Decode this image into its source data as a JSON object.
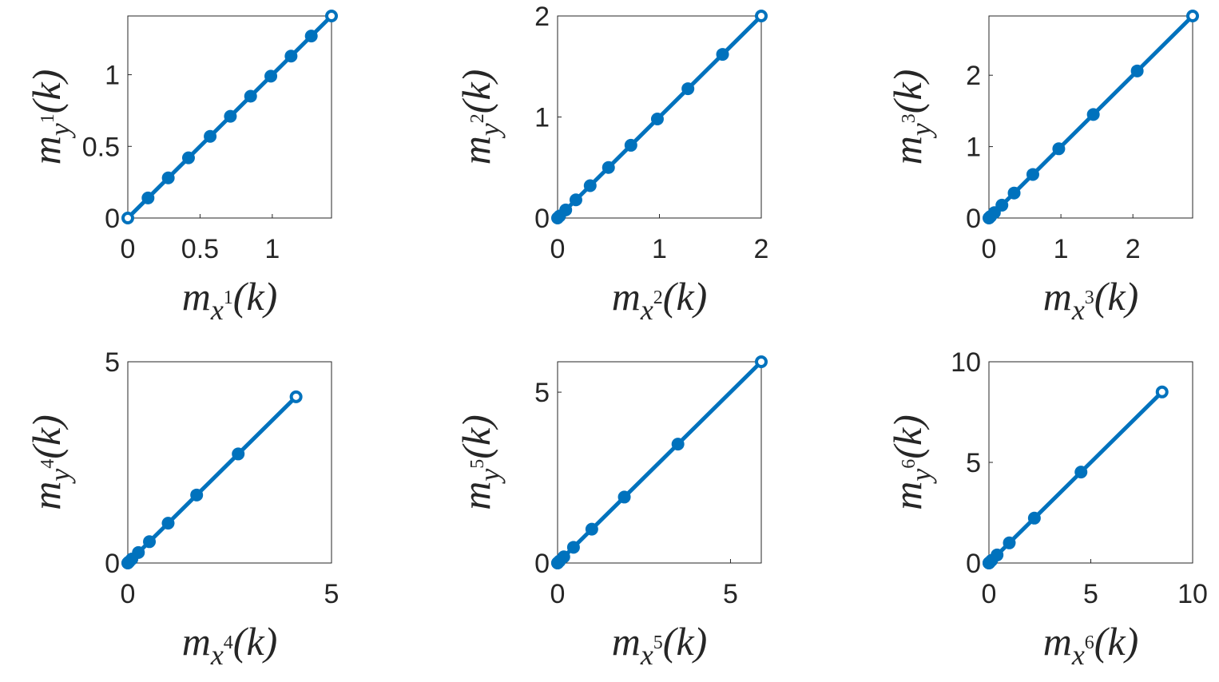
{
  "chart_data": [
    {
      "type": "line",
      "color": "#0072bd",
      "x": [
        0,
        0.14,
        0.28,
        0.42,
        0.57,
        0.71,
        0.85,
        0.99,
        1.13,
        1.27,
        1.41
      ],
      "values": [
        0,
        0.14,
        0.28,
        0.42,
        0.57,
        0.71,
        0.85,
        0.99,
        1.13,
        1.27,
        1.41
      ],
      "xlim": [
        0,
        1.41
      ],
      "ylim": [
        0,
        1.41
      ],
      "xticks": [
        0,
        0.5,
        1
      ],
      "yticks": [
        0,
        0.5,
        1
      ],
      "xlabel": {
        "base": "m",
        "sub": "x",
        "sup": "1",
        "arg": "(k)"
      },
      "ylabel": {
        "base": "m",
        "sub": "y",
        "sup": "1",
        "arg": "(k)"
      }
    },
    {
      "type": "line",
      "color": "#0072bd",
      "x": [
        0,
        0.02,
        0.08,
        0.18,
        0.32,
        0.5,
        0.72,
        0.98,
        1.28,
        1.62,
        2
      ],
      "values": [
        0,
        0.02,
        0.08,
        0.18,
        0.32,
        0.5,
        0.72,
        0.98,
        1.28,
        1.62,
        2
      ],
      "xlim": [
        0,
        2
      ],
      "ylim": [
        0,
        2
      ],
      "xticks": [
        0,
        1,
        2
      ],
      "yticks": [
        0,
        1,
        2
      ],
      "xlabel": {
        "base": "m",
        "sub": "x",
        "sup": "2",
        "arg": "(k)"
      },
      "ylabel": {
        "base": "m",
        "sub": "y",
        "sup": "2",
        "arg": "(k)"
      }
    },
    {
      "type": "line",
      "color": "#0072bd",
      "x": [
        0,
        0.003,
        0.023,
        0.076,
        0.18,
        0.35,
        0.61,
        0.97,
        1.45,
        2.06,
        2.83
      ],
      "values": [
        0,
        0.003,
        0.023,
        0.076,
        0.18,
        0.35,
        0.61,
        0.97,
        1.45,
        2.06,
        2.83
      ],
      "xlim": [
        0,
        2.83
      ],
      "ylim": [
        0,
        2.83
      ],
      "xticks": [
        0,
        1,
        2
      ],
      "yticks": [
        0,
        1,
        2
      ],
      "xlabel": {
        "base": "m",
        "sub": "x",
        "sup": "3",
        "arg": "(k)"
      },
      "ylabel": {
        "base": "m",
        "sub": "y",
        "sup": "3",
        "arg": "(k)"
      }
    },
    {
      "type": "line",
      "color": "#0072bd",
      "x": [
        0,
        0.0004,
        0.007,
        0.033,
        0.1,
        0.26,
        0.53,
        0.99,
        1.69,
        2.71,
        4.13
      ],
      "values": [
        0,
        0.0004,
        0.007,
        0.033,
        0.1,
        0.26,
        0.53,
        0.99,
        1.69,
        2.71,
        4.13
      ],
      "xlim": [
        0,
        5
      ],
      "ylim": [
        0,
        5
      ],
      "xticks": [
        0,
        5
      ],
      "yticks": [
        0,
        5
      ],
      "xlabel": {
        "base": "m",
        "sub": "x",
        "sup": "4",
        "arg": "(k)"
      },
      "ylabel": {
        "base": "m",
        "sub": "y",
        "sup": "4",
        "arg": "(k)"
      }
    },
    {
      "type": "line",
      "color": "#0072bd",
      "x": [
        0,
        0.0001,
        0.002,
        0.014,
        0.06,
        0.18,
        0.46,
        0.99,
        1.93,
        3.48,
        5.89
      ],
      "values": [
        0,
        0.0001,
        0.002,
        0.014,
        0.06,
        0.18,
        0.46,
        0.99,
        1.93,
        3.48,
        5.89
      ],
      "xlim": [
        0,
        5.89
      ],
      "ylim": [
        0,
        5.89
      ],
      "xticks": [
        0,
        5
      ],
      "yticks": [
        0,
        5
      ],
      "xlabel": {
        "base": "m",
        "sub": "x",
        "sup": "5",
        "arg": "(k)"
      },
      "ylabel": {
        "base": "m",
        "sub": "y",
        "sup": "5",
        "arg": "(k)"
      }
    },
    {
      "type": "line",
      "color": "#0072bd",
      "x": [
        0,
        1e-05,
        0.0005,
        0.006,
        0.035,
        0.13,
        0.4,
        1.0,
        2.23,
        4.52,
        8.5
      ],
      "values": [
        0,
        1e-05,
        0.0005,
        0.006,
        0.035,
        0.13,
        0.4,
        1.0,
        2.23,
        4.52,
        8.5
      ],
      "xlim": [
        0,
        10
      ],
      "ylim": [
        0,
        10
      ],
      "xticks": [
        0,
        5,
        10
      ],
      "yticks": [
        0,
        5,
        10
      ],
      "xlabel": {
        "base": "m",
        "sub": "x",
        "sup": "6",
        "arg": "(k)"
      },
      "ylabel": {
        "base": "m",
        "sub": "y",
        "sup": "6",
        "arg": "(k)"
      }
    }
  ]
}
